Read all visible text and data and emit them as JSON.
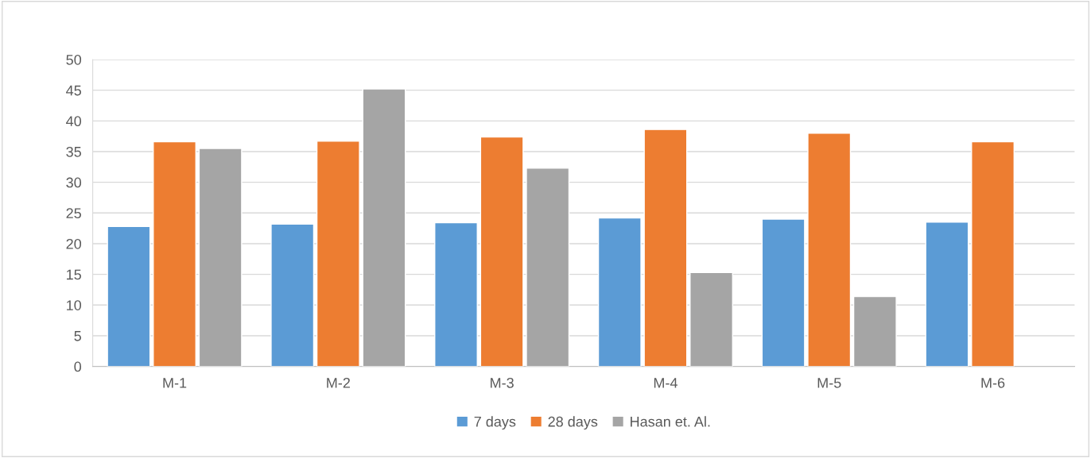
{
  "chart_data": {
    "type": "bar",
    "categories": [
      "M-1",
      "M-2",
      "M-3",
      "M-4",
      "M-5",
      "M-6"
    ],
    "series": [
      {
        "name": "7 days",
        "color": "#5b9bd5",
        "values": [
          22.8,
          23.2,
          23.4,
          24.2,
          24.0,
          23.5
        ]
      },
      {
        "name": "28 days",
        "color": "#ed7d31",
        "values": [
          36.6,
          36.7,
          37.4,
          38.6,
          38.0,
          36.6
        ]
      },
      {
        "name": "Hasan et. Al.",
        "color": "#a5a5a5",
        "values": [
          35.5,
          45.2,
          32.3,
          15.3,
          11.4,
          null
        ]
      }
    ],
    "ylim": [
      0,
      50
    ],
    "yticks": [
      0,
      5,
      10,
      15,
      20,
      25,
      30,
      35,
      40,
      45,
      50
    ],
    "grid": "y",
    "legend": "bottom"
  }
}
